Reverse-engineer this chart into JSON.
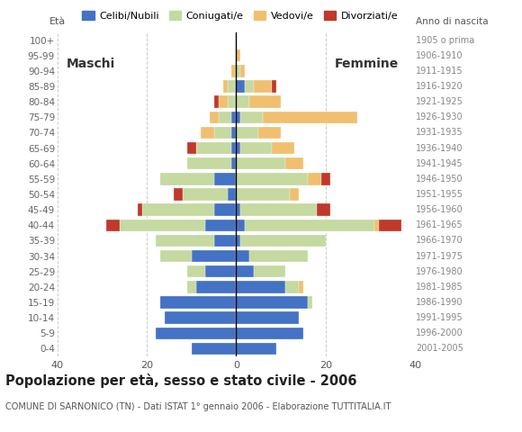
{
  "age_groups": [
    "0-4",
    "5-9",
    "10-14",
    "15-19",
    "20-24",
    "25-29",
    "30-34",
    "35-39",
    "40-44",
    "45-49",
    "50-54",
    "55-59",
    "60-64",
    "65-69",
    "70-74",
    "75-79",
    "80-84",
    "85-89",
    "90-94",
    "95-99",
    "100+"
  ],
  "birth_years": [
    "2001-2005",
    "1996-2000",
    "1991-1995",
    "1986-1990",
    "1981-1985",
    "1976-1980",
    "1971-1975",
    "1966-1970",
    "1961-1965",
    "1956-1960",
    "1951-1955",
    "1946-1950",
    "1941-1945",
    "1936-1940",
    "1931-1935",
    "1926-1930",
    "1921-1925",
    "1916-1920",
    "1911-1915",
    "1906-1910",
    "1905 o prima"
  ],
  "colors": {
    "celibe": "#4472c4",
    "coniugato": "#c5d9a0",
    "vedovo": "#f0c070",
    "divorziato": "#c0392b"
  },
  "males": {
    "celibe": [
      10,
      18,
      16,
      17,
      9,
      7,
      10,
      5,
      7,
      5,
      2,
      5,
      1,
      1,
      1,
      1,
      0,
      0,
      0,
      0,
      0
    ],
    "coniugato": [
      0,
      0,
      0,
      0,
      2,
      4,
      7,
      13,
      19,
      16,
      10,
      12,
      10,
      8,
      4,
      3,
      2,
      2,
      0,
      0,
      0
    ],
    "vedovo": [
      0,
      0,
      0,
      0,
      0,
      0,
      0,
      0,
      0,
      0,
      0,
      0,
      0,
      0,
      3,
      2,
      2,
      1,
      1,
      0,
      0
    ],
    "divorziato": [
      0,
      0,
      0,
      0,
      0,
      0,
      0,
      0,
      3,
      1,
      2,
      0,
      0,
      2,
      0,
      0,
      1,
      0,
      0,
      0,
      0
    ]
  },
  "females": {
    "celibe": [
      9,
      15,
      14,
      16,
      11,
      4,
      3,
      1,
      2,
      1,
      0,
      0,
      0,
      1,
      0,
      1,
      0,
      2,
      0,
      0,
      0
    ],
    "coniugata": [
      0,
      0,
      0,
      1,
      3,
      7,
      13,
      19,
      29,
      17,
      12,
      16,
      11,
      7,
      5,
      5,
      3,
      2,
      1,
      0,
      0
    ],
    "vedova": [
      0,
      0,
      0,
      0,
      1,
      0,
      0,
      0,
      1,
      0,
      2,
      3,
      4,
      5,
      5,
      21,
      7,
      4,
      1,
      1,
      0
    ],
    "divorziata": [
      0,
      0,
      0,
      0,
      0,
      0,
      0,
      0,
      5,
      3,
      0,
      2,
      0,
      0,
      0,
      0,
      0,
      1,
      0,
      0,
      0
    ]
  },
  "xlim": 40,
  "title": "Popolazione per età, sesso e stato civile - 2006",
  "subtitle": "COMUNE DI SARNONICO (TN) - Dati ISTAT 1° gennaio 2006 - Elaborazione TUTTITALIA.IT",
  "ylabel_left": "Età",
  "ylabel_right": "Anno di nascita",
  "label_maschi": "Maschi",
  "label_femmine": "Femmine",
  "legend_labels": [
    "Celibi/Nubili",
    "Coniugati/e",
    "Vedovi/e",
    "Divorziati/e"
  ],
  "bg_color": "#f5f5f5"
}
